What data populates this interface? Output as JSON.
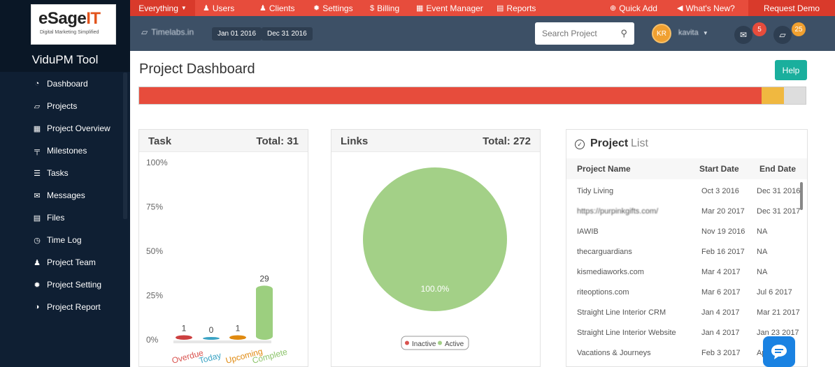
{
  "brand": {
    "logo_main": "eSage",
    "logo_accent": "IT",
    "logo_tagline": "Digital Marketing Simplified",
    "tool_title": "ViduPM Tool"
  },
  "sidebar": {
    "items": [
      {
        "label": "Dashboard",
        "icon": "dashboard-icon",
        "glyph": "◔"
      },
      {
        "label": "Projects",
        "icon": "folder-open-icon",
        "glyph": "▱"
      },
      {
        "label": "Project Overview",
        "icon": "grid-icon",
        "glyph": "▦"
      },
      {
        "label": "Milestones",
        "icon": "milestone-icon",
        "glyph": "╤"
      },
      {
        "label": "Tasks",
        "icon": "list-icon",
        "glyph": "☰"
      },
      {
        "label": "Messages",
        "icon": "envelope-icon",
        "glyph": "✉"
      },
      {
        "label": "Files",
        "icon": "file-icon",
        "glyph": "▤"
      },
      {
        "label": "Time Log",
        "icon": "clock-icon",
        "glyph": "◷"
      },
      {
        "label": "Project Team",
        "icon": "users-icon",
        "glyph": "♟"
      },
      {
        "label": "Project Setting",
        "icon": "gear-icon",
        "glyph": "✹"
      },
      {
        "label": "Project Report",
        "icon": "report-icon",
        "glyph": "◑"
      }
    ]
  },
  "topnav": {
    "everything": "Everything",
    "items": [
      {
        "label": "Users",
        "glyph": "♟"
      },
      {
        "label": "Clients",
        "glyph": "♟"
      },
      {
        "label": "Settings",
        "glyph": "✹"
      },
      {
        "label": "Billing",
        "glyph": "$"
      },
      {
        "label": "Event Manager",
        "glyph": "▦"
      },
      {
        "label": "Reports",
        "glyph": "▤"
      }
    ],
    "quick_add": "Quick Add",
    "whats_new": "What's New?",
    "request_demo": "Request Demo"
  },
  "subbar": {
    "project": "Timelabs.in",
    "start_date": "Jan 01 2016",
    "end_date": "Dec 31 2016",
    "search_placeholder": "Search Project",
    "avatar_initials": "KR",
    "user_name": "kavita",
    "messages_count": "5",
    "projects_count": "25"
  },
  "page": {
    "title": "Project Dashboard",
    "help": "Help"
  },
  "progress_bar": {
    "segments": [
      {
        "fraction": 0.934,
        "color": "#e74c3c"
      },
      {
        "fraction": 0.034,
        "color": "#f0b840"
      },
      {
        "fraction": 0.032,
        "color": "#dddddd"
      }
    ]
  },
  "task_panel": {
    "title": "Task",
    "total_label": "Total: 31"
  },
  "links_panel": {
    "title": "Links",
    "total_label": "Total: 272"
  },
  "chart_data": [
    {
      "type": "bar",
      "categories": [
        "Overdue",
        "Today",
        "Upcoming",
        "Complete"
      ],
      "values": [
        1,
        0,
        1,
        29
      ],
      "colors": [
        "#cc4040",
        "#3aa3c4",
        "#e08a10",
        "#9ccf7f"
      ],
      "label_colors": [
        "#d9534f",
        "#3aa3c4",
        "#e08a10",
        "#8cc46b"
      ],
      "ylim": [
        0,
        100
      ],
      "ytick_labels": [
        "100%",
        "75%",
        "50%",
        "25%",
        "0%"
      ],
      "ticks": [
        100,
        75,
        50,
        25,
        0
      ],
      "grid": false
    },
    {
      "type": "pie",
      "slices": [
        {
          "name": "Inactive",
          "value": 0,
          "color": "#d9534f"
        },
        {
          "name": "Active",
          "value": 100,
          "color": "#a3d087"
        }
      ],
      "slice_label": "100.0%",
      "legend": "bottom"
    }
  ],
  "project_list": {
    "title_bold": "Project",
    "title_light": "List",
    "columns": [
      "Project Name",
      "Start Date",
      "End Date"
    ],
    "rows": [
      [
        "Tidy Living",
        "Oct 3 2016",
        "Dec 31 2016"
      ],
      [
        "https://purpinkgifts.com/",
        "Mar 20 2017",
        "Dec 31 2017"
      ],
      [
        "IAWIB",
        "Nov 19 2016",
        "NA"
      ],
      [
        "thecarguardians",
        "Feb 16 2017",
        "NA"
      ],
      [
        "kismediaworks.com",
        "Mar 4 2017",
        "NA"
      ],
      [
        "riteoptions.com",
        "Mar 6 2017",
        "Jul 6 2017"
      ],
      [
        "Straight Line Interior CRM",
        "Jan 4 2017",
        "Mar 21 2017"
      ],
      [
        "Straight Line Interior Website",
        "Jan 4 2017",
        "Jan 23 2017"
      ],
      [
        "Vacations & Journeys",
        "Feb 3 2017",
        "Apr 7 2017"
      ]
    ]
  }
}
